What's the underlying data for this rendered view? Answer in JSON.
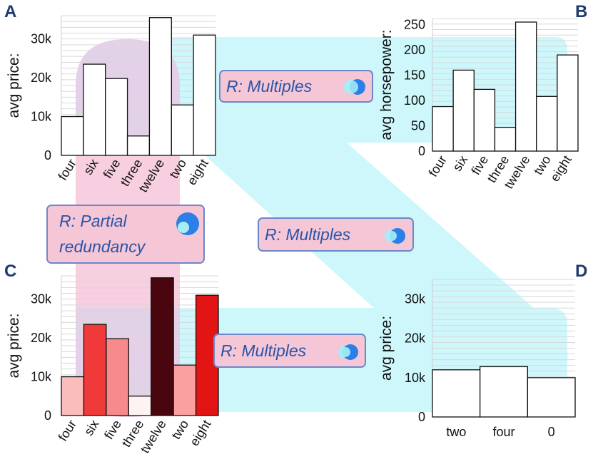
{
  "panels": [
    {
      "letter": "A",
      "ylabel": "avg price:",
      "yticks": [
        "0",
        "10k",
        "20k",
        "30k"
      ],
      "chart": {
        "type": "bar",
        "categories": [
          "four",
          "six",
          "five",
          "three",
          "twelve",
          "two",
          "eight"
        ],
        "values": [
          10000,
          23500,
          19800,
          5000,
          35500,
          13000,
          31000
        ],
        "ylim": [
          0,
          36000
        ]
      }
    },
    {
      "letter": "B",
      "ylabel": "avg horsepower:",
      "yticks": [
        "0",
        "50",
        "100",
        "150",
        "200",
        "250"
      ],
      "chart": {
        "type": "bar",
        "categories": [
          "four",
          "six",
          "five",
          "three",
          "twelve",
          "two",
          "eight"
        ],
        "values": [
          88,
          160,
          122,
          47,
          255,
          108,
          190
        ],
        "ylim": [
          0,
          262
        ]
      }
    },
    {
      "letter": "C",
      "ylabel": "avg price:",
      "yticks": [
        "0",
        "10k",
        "20k",
        "30k"
      ],
      "chart": {
        "type": "bar",
        "categories": [
          "four",
          "six",
          "five",
          "three",
          "twelve",
          "two",
          "eight"
        ],
        "values": [
          10000,
          23500,
          19800,
          5000,
          35500,
          13000,
          31000
        ],
        "ylim": [
          0,
          36000
        ],
        "colors": [
          "#fbbcbc",
          "#f03a3a",
          "#f78a8a",
          "#fff2f2",
          "#4a060e",
          "#fba0a0",
          "#e31414"
        ]
      }
    },
    {
      "letter": "D",
      "ylabel": "avg price:",
      "yticks": [
        "0",
        "10k",
        "20k",
        "30k"
      ],
      "chart": {
        "type": "bar",
        "categories": [
          "two",
          "four",
          "0"
        ],
        "values": [
          12000,
          12800,
          10000
        ],
        "ylim": [
          0,
          35000
        ]
      }
    }
  ],
  "relations": [
    {
      "label": "R: Multiples"
    },
    {
      "label": "R: Partial redundancy",
      "line1": "R: Partial",
      "line2": "redundancy"
    },
    {
      "label": "R: Multiples"
    },
    {
      "label": "R: Multiples"
    }
  ],
  "colors": {
    "cyan_band": "#cdf7fb",
    "pink_band": "#f7cfe0",
    "purple_band": "#e4d0e8",
    "relation_box": "#f5c6d6",
    "relation_border": "#6f87c8",
    "relation_text": "#2b54a6",
    "venn_dark": "#2b7fe6",
    "venn_light": "#a6eef6",
    "gridline": "#d8d8d8"
  }
}
